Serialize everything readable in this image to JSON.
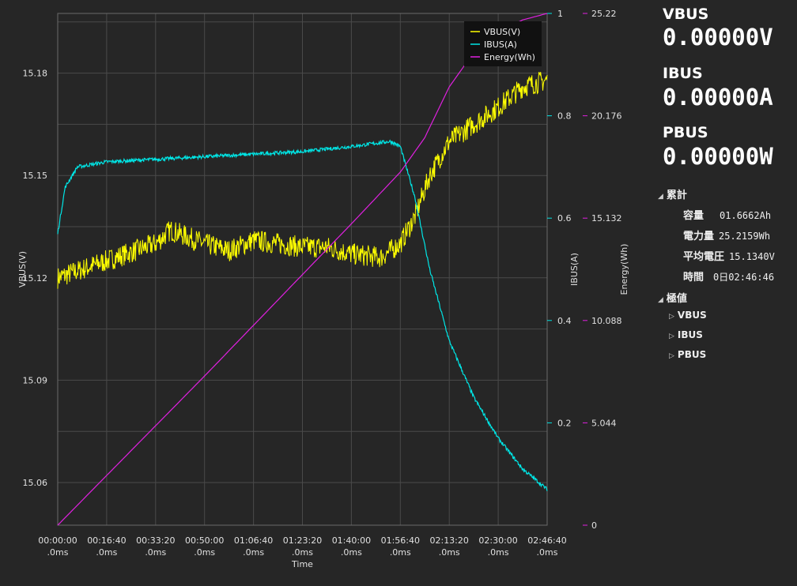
{
  "chart_data": {
    "type": "line",
    "xlabel": "Time",
    "x_ticks": [
      {
        "l1": "00:00:00",
        "l2": ".0ms"
      },
      {
        "l1": "00:16:40",
        "l2": ".0ms"
      },
      {
        "l1": "00:33:20",
        "l2": ".0ms"
      },
      {
        "l1": "00:50:00",
        "l2": ".0ms"
      },
      {
        "l1": "01:06:40",
        "l2": ".0ms"
      },
      {
        "l1": "01:23:20",
        "l2": ".0ms"
      },
      {
        "l1": "01:40:00",
        "l2": ".0ms"
      },
      {
        "l1": "01:56:40",
        "l2": ".0ms"
      },
      {
        "l1": "02:13:20",
        "l2": ".0ms"
      },
      {
        "l1": "02:30:00",
        "l2": ".0ms"
      },
      {
        "l1": "02:46:40",
        "l2": ".0ms"
      }
    ],
    "xlim_seconds": [
      0,
      10000
    ],
    "y_left": {
      "label": "VBUS(V)",
      "ticks": [
        "15.06",
        "15.09",
        "15.12",
        "15.15",
        "15.18"
      ],
      "range": [
        15.0475,
        15.1975
      ]
    },
    "y_right1": {
      "label": "IBUS(A)",
      "ticks": [
        "0.2",
        "0.4",
        "0.6",
        "0.8",
        "1"
      ],
      "range": [
        0.0,
        1.0
      ]
    },
    "y_right2": {
      "label": "Energy(Wh)",
      "ticks": [
        "0",
        "5.044",
        "10.088",
        "15.132",
        "20.176",
        "25.22"
      ],
      "range": [
        0,
        25.22
      ]
    },
    "series": [
      {
        "name": "VBUS(V)",
        "color": "#ffff00",
        "x": [
          0,
          1000,
          2000,
          2300,
          3000,
          3500,
          4000,
          4500,
          5000,
          5500,
          6000,
          6600,
          7000,
          7300,
          7600,
          8000,
          8500,
          9000,
          9500,
          10000
        ],
        "y": [
          15.12,
          15.125,
          15.13,
          15.134,
          15.13,
          15.128,
          15.131,
          15.13,
          15.129,
          15.129,
          15.127,
          15.126,
          15.13,
          15.138,
          15.15,
          15.16,
          15.165,
          15.17,
          15.176,
          15.178
        ]
      },
      {
        "name": "IBUS(A)",
        "color": "#00e5e5",
        "x": [
          0,
          150,
          400,
          1000,
          2000,
          3000,
          4000,
          5000,
          6000,
          6800,
          7000,
          7300,
          7600,
          8000,
          8500,
          9000,
          9500,
          10000
        ],
        "y": [
          0.57,
          0.66,
          0.7,
          0.71,
          0.715,
          0.72,
          0.725,
          0.73,
          0.74,
          0.75,
          0.74,
          0.64,
          0.5,
          0.36,
          0.25,
          0.17,
          0.11,
          0.07
        ]
      },
      {
        "name": "Energy(Wh)",
        "color": "#e020e0",
        "x": [
          0,
          1000,
          2000,
          3000,
          4000,
          5000,
          6000,
          7000,
          7500,
          8000,
          8500,
          9000,
          9500,
          10000
        ],
        "y": [
          0,
          2.45,
          4.9,
          7.35,
          9.85,
          12.35,
          14.85,
          17.4,
          19.1,
          21.6,
          23.3,
          24.3,
          24.9,
          25.22
        ]
      }
    ],
    "legend": {
      "position": "top-right",
      "entries": [
        "VBUS(V)",
        "IBUS(A)",
        "Energy(Wh)"
      ]
    },
    "grid": true
  },
  "panel": {
    "vbus_label": "VBUS",
    "vbus_value": "0.00000V",
    "ibus_label": "IBUS",
    "ibus_value": "0.00000A",
    "pbus_label": "PBUS",
    "pbus_value": "0.00000W",
    "cumulative_label": "累計",
    "capacity_label": "容量",
    "capacity_value": "01.6662Ah",
    "energy_label": "電力量",
    "energy_value": "25.2159Wh",
    "avgvolt_label": "平均電圧",
    "avgvolt_value": "15.1340V",
    "time_label": "時間",
    "time_value": "0日02:46:46",
    "extremes_label": "極値",
    "extreme_items": [
      "VBUS",
      "IBUS",
      "PBUS"
    ]
  },
  "icons": {
    "expanded": "triangle-down-icon",
    "collapsed": "triangle-right-icon"
  }
}
